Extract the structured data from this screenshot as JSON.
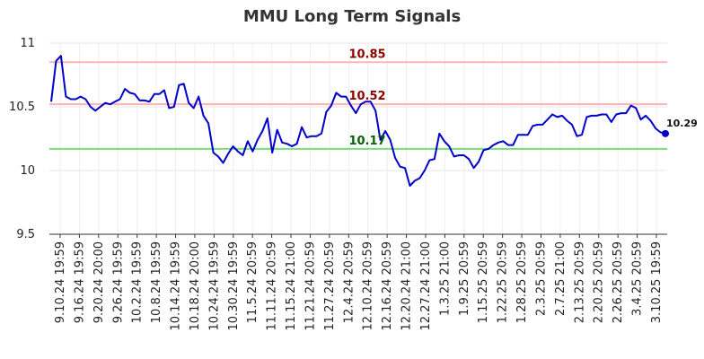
{
  "chart_data": {
    "type": "line",
    "title": "MMU Long Term Signals",
    "ylim": [
      9.5,
      11
    ],
    "y_ticks": [
      "9.5",
      "10",
      "10.5",
      "11"
    ],
    "grid": true,
    "x_tick_labels": [
      "9.10.24 19:59",
      "9.16.24 19:59",
      "9.20.24 20:00",
      "9.26.24 19:59",
      "10.2.24 19:59",
      "10.8.24 19:59",
      "10.14.24 19:59",
      "10.18.24 20:00",
      "10.24.24 19:59",
      "10.30.24 19:59",
      "11.5.24 20:59",
      "11.11.24 20:59",
      "11.15.24 21:00",
      "11.21.24 20:59",
      "11.27.24 20:59",
      "12.4.24 20:59",
      "12.10.24 20:59",
      "12.16.24 20:59",
      "12.20.24 21:00",
      "12.27.24 21:00",
      "1.3.25 21:00",
      "1.9.25 20:59",
      "1.15.25 20:59",
      "1.22.25 20:59",
      "1.28.25 20:59",
      "2.3.25 20:59",
      "2.7.25 21:00",
      "2.13.25 20:59",
      "2.20.25 20:59",
      "2.26.25 20:59",
      "3.4.25 20:59",
      "3.10.25 19:59"
    ],
    "levels": [
      {
        "value": 10.85,
        "label": "10.85",
        "line_color": "#ffb3b3",
        "text_color": "#8b0000"
      },
      {
        "value": 10.52,
        "label": "10.52",
        "line_color": "#ffb3b3",
        "text_color": "#8b0000"
      },
      {
        "value": 10.17,
        "label": "10.17",
        "line_color": "#77dd77",
        "text_color": "#006400"
      }
    ],
    "series": [
      {
        "color": "#0000cc",
        "values": [
          10.54,
          10.86,
          10.9,
          10.58,
          10.56,
          10.56,
          10.58,
          10.56,
          10.5,
          10.47,
          10.5,
          10.53,
          10.52,
          10.54,
          10.56,
          10.64,
          10.61,
          10.6,
          10.55,
          10.55,
          10.54,
          10.6,
          10.6,
          10.63,
          10.49,
          10.5,
          10.67,
          10.68,
          10.53,
          10.49,
          10.58,
          10.43,
          10.37,
          10.14,
          10.11,
          10.06,
          10.13,
          10.19,
          10.15,
          10.12,
          10.23,
          10.15,
          10.24,
          10.31,
          10.41,
          10.14,
          10.32,
          10.22,
          10.21,
          10.19,
          10.21,
          10.34,
          10.26,
          10.27,
          10.27,
          10.29,
          10.46,
          10.51,
          10.61,
          10.58,
          10.58,
          10.51,
          10.45,
          10.52,
          10.54,
          10.54,
          10.47,
          10.24,
          10.31,
          10.24,
          10.1,
          10.03,
          10.02,
          9.88,
          9.92,
          9.94,
          10.0,
          10.08,
          10.09,
          10.29,
          10.23,
          10.19,
          10.11,
          10.12,
          10.12,
          10.09,
          10.02,
          10.07,
          10.16,
          10.17,
          10.2,
          10.22,
          10.23,
          10.2,
          10.2,
          10.28,
          10.28,
          10.28,
          10.35,
          10.36,
          10.36,
          10.4,
          10.44,
          10.42,
          10.43,
          10.39,
          10.36,
          10.27,
          10.28,
          10.42,
          10.43,
          10.43,
          10.44,
          10.44,
          10.38,
          10.44,
          10.45,
          10.45,
          10.51,
          10.49,
          10.4,
          10.43,
          10.39,
          10.33,
          10.3,
          10.29
        ]
      }
    ],
    "last_value_label": "10.29"
  }
}
